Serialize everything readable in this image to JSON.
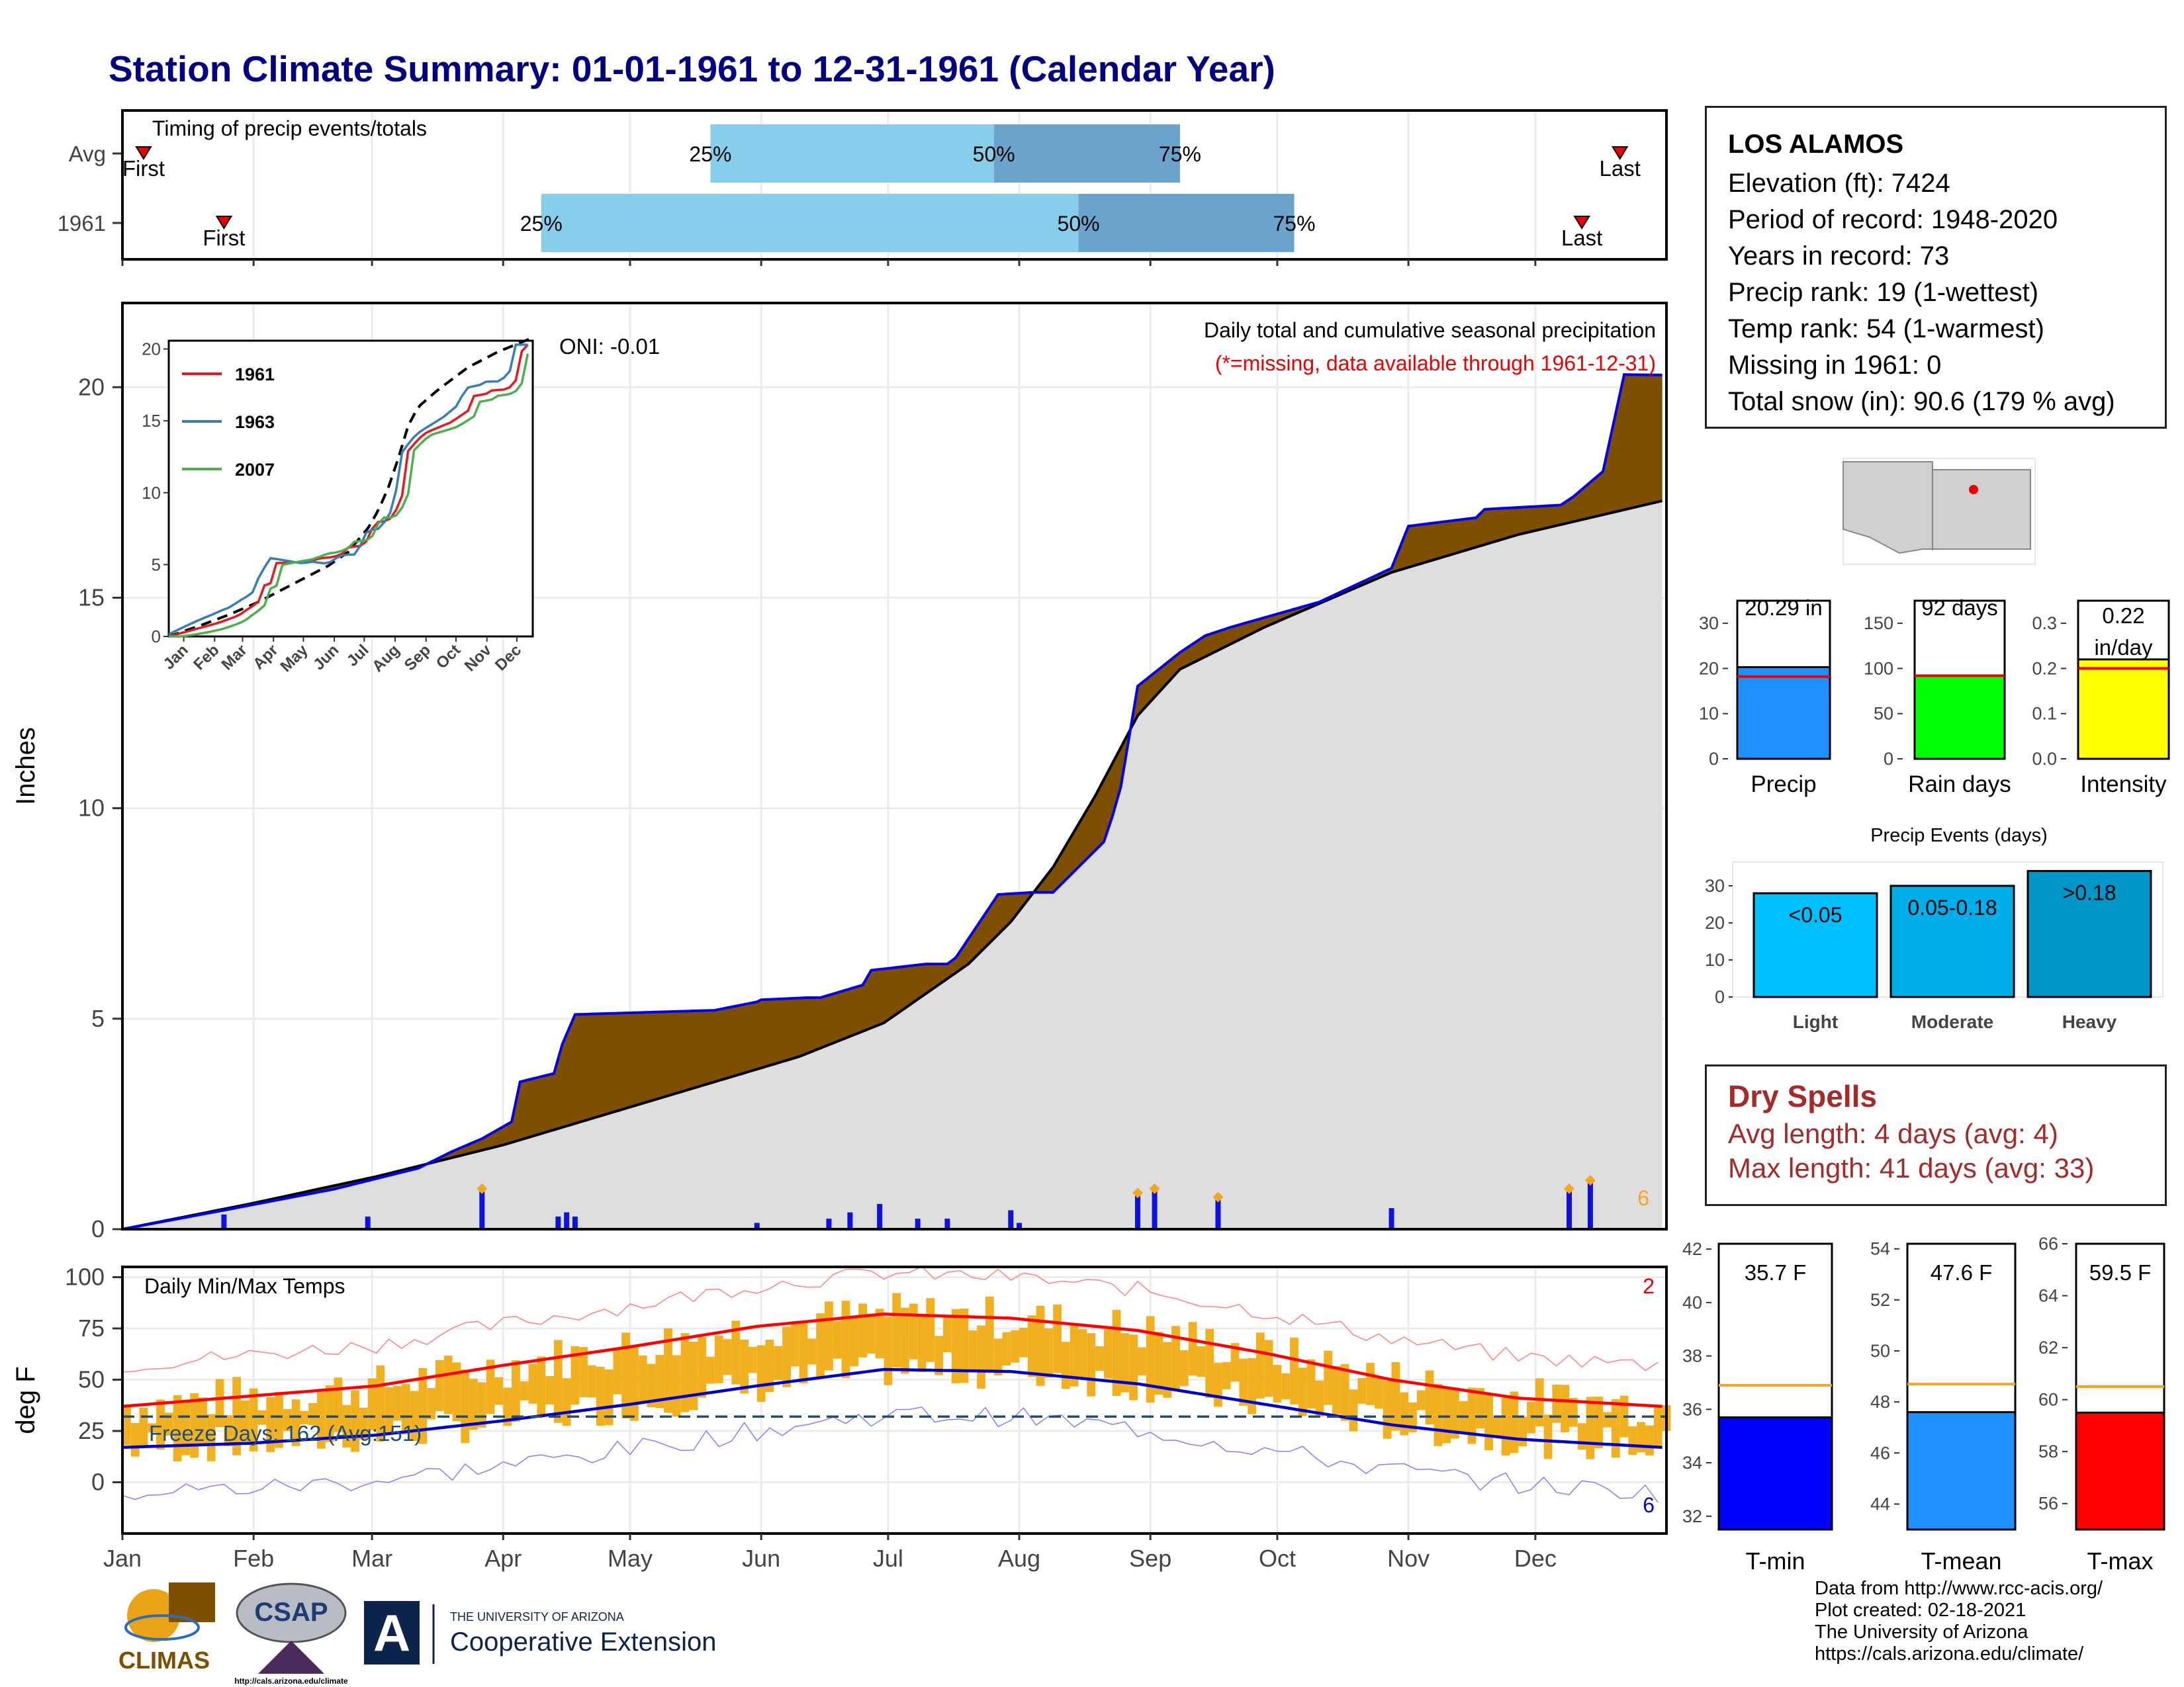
{
  "title": "Station Climate Summary: 01-01-1961 to 12-31-1961 (Calendar Year)",
  "colors": {
    "title": "#000080",
    "brown": "#7f4f00",
    "green": "#008000",
    "blue_line": "#0000ee",
    "gray_fill": "#dedede",
    "light_blue": "#87ceeb",
    "mid_blue": "#6aa4cc",
    "orange": "#f0b020",
    "red": "#ff0000",
    "dry": "#a52a2a"
  },
  "timing": {
    "heading": "Timing of precip events/totals",
    "rows": [
      {
        "label": "Avg",
        "first": "First",
        "last": "Last",
        "p25": "25%",
        "p50": "50%",
        "p75": "75%",
        "first_day": 5,
        "p25_day": 139,
        "p50_day": 206,
        "p75_day": 250,
        "last_day": 354
      },
      {
        "label": "1961",
        "first": "First",
        "last": "Last",
        "p25": "25%",
        "p50": "50%",
        "p75": "75%",
        "first_day": 24,
        "p25_day": 99,
        "p50_day": 226,
        "p75_day": 277,
        "last_day": 345
      }
    ]
  },
  "precip_panel": {
    "ylabel": "Inches",
    "yticks": [
      "0",
      "5",
      "10",
      "15",
      "20"
    ],
    "caption": "Daily total and cumulative seasonal precipitation",
    "missing_note": "(*=missing, data available through 1961-12-31)",
    "oni": "ONI: -0.01",
    "corner_count": "6"
  },
  "inset": {
    "yticks": [
      "0",
      "5",
      "10",
      "15",
      "20"
    ],
    "months": [
      "Jan",
      "Feb",
      "Mar",
      "Apr",
      "May",
      "Jun",
      "Jul",
      "Aug",
      "Sep",
      "Oct",
      "Nov",
      "Dec"
    ],
    "legend": [
      {
        "name": "1961",
        "color": "#e41a1c"
      },
      {
        "name": "1963",
        "color": "#377eb8"
      },
      {
        "name": "2007",
        "color": "#4daf4a"
      }
    ]
  },
  "temp_panel": {
    "ylabel": "deg F",
    "heading": "Daily Min/Max Temps",
    "freeze_text": "Freeze Days: 162 (Avg:151)",
    "yticks": [
      "0",
      "25",
      "50",
      "75",
      "100"
    ],
    "count_top": "2",
    "count_bottom": "6"
  },
  "months": [
    "Jan",
    "Feb",
    "Mar",
    "Apr",
    "May",
    "Jun",
    "Jul",
    "Aug",
    "Sep",
    "Oct",
    "Nov",
    "Dec"
  ],
  "station": {
    "name": "LOS ALAMOS",
    "elevation": "Elevation (ft): 7424",
    "period": "Period of record: 1948-2020",
    "years": "Years in record: 73",
    "precip_rank": "Precip rank: 19 (1-wettest)",
    "temp_rank": "Temp rank: 54 (1-warmest)",
    "missing": "Missing in 1961: 0",
    "snow": "Total snow (in): 90.6 (179 % avg)"
  },
  "summary_bars": [
    {
      "label": "Precip",
      "value_text": "20.29 in",
      "value": 20.29,
      "avg": 18.2,
      "max": 35,
      "ticks": [
        "0",
        "10",
        "20",
        "30"
      ],
      "tickvals": [
        0,
        10,
        20,
        30
      ],
      "color": "#1e90ff"
    },
    {
      "label": "Rain days",
      "value_text": "92 days",
      "value": 92,
      "avg": 92,
      "max": 175,
      "ticks": [
        "0",
        "50",
        "100",
        "150"
      ],
      "tickvals": [
        0,
        50,
        100,
        150
      ],
      "color": "#00ff00"
    },
    {
      "label": "Intensity",
      "value_text": "0.22 in/day",
      "value_line1": "0.22",
      "value_line2": "in/day",
      "value": 0.22,
      "avg": 0.2,
      "max": 0.35,
      "ticks": [
        "0.0",
        "0.1",
        "0.2",
        "0.3"
      ],
      "tickvals": [
        0,
        0.1,
        0.2,
        0.3
      ],
      "color": "#ffff00"
    }
  ],
  "events": {
    "title": "Precip Events (days)",
    "yticks": [
      "0",
      "10",
      "20",
      "30"
    ],
    "bars": [
      {
        "category": "Light",
        "label": "<0.05",
        "value": 28,
        "color": "#00bfff"
      },
      {
        "category": "Moderate",
        "label": "0.05-0.18",
        "value": 30,
        "color": "#00aeea"
      },
      {
        "category": "Heavy",
        "label": ">0.18",
        "value": 34,
        "color": "#0096c8"
      }
    ]
  },
  "dry_spells": {
    "title": "Dry Spells",
    "avg": "Avg length: 4 days (avg: 4)",
    "max": "Max length: 41 days (avg: 33)"
  },
  "temp_bars": [
    {
      "label": "T-min",
      "value_text": "35.7 F",
      "value": 35.7,
      "avg": 36.9,
      "min": 31.5,
      "max": 42.2,
      "ticks": [
        "32",
        "34",
        "36",
        "38",
        "40",
        "42"
      ],
      "tickvals": [
        32,
        34,
        36,
        38,
        40,
        42
      ],
      "color": "#0000ff"
    },
    {
      "label": "T-mean",
      "value_text": "47.6 F",
      "value": 47.6,
      "avg": 48.7,
      "min": 43.0,
      "max": 54.2,
      "ticks": [
        "44",
        "46",
        "48",
        "50",
        "52",
        "54"
      ],
      "tickvals": [
        44,
        46,
        48,
        50,
        52,
        54
      ],
      "color": "#1e90ff"
    },
    {
      "label": "T-max",
      "value_text": "59.5 F",
      "value": 59.5,
      "avg": 60.5,
      "min": 55.0,
      "max": 66.0,
      "ticks": [
        "56",
        "58",
        "60",
        "62",
        "64",
        "66"
      ],
      "tickvals": [
        56,
        58,
        60,
        62,
        64,
        66
      ],
      "color": "#ff0000"
    }
  ],
  "logos": {
    "climas": "CLIMAS",
    "csap": "CSAP",
    "csap_url": "http://cals.arizona.edu/climate",
    "ua_line1": "THE UNIVERSITY OF ARIZONA",
    "ua_line2": "Cooperative Extension"
  },
  "credits": [
    "Data from http://www.rcc-acis.org/",
    "Plot created: 02-18-2021",
    "The University of Arizona",
    "https://cals.arizona.edu/climate/"
  ],
  "chart_data": [
    {
      "type": "area",
      "title": "Daily total and cumulative seasonal precipitation",
      "ylabel": "Inches",
      "ylim": [
        0,
        22
      ],
      "x_unit": "day of year",
      "series": [
        {
          "name": "1961 cumulative",
          "x": [
            0,
            24,
            50,
            70,
            78,
            85,
            92,
            94,
            102,
            104,
            107,
            140,
            150,
            151,
            162,
            165,
            175,
            177,
            190,
            195,
            197,
            207,
            215,
            220,
            232,
            234,
            236,
            240,
            250,
            256,
            262,
            283,
            300,
            304,
            320,
            322,
            340,
            343,
            350,
            355,
            364
          ],
          "y": [
            0.0,
            0.45,
            0.95,
            1.45,
            1.85,
            2.15,
            2.55,
            3.5,
            3.7,
            4.4,
            5.1,
            5.2,
            5.4,
            5.45,
            5.5,
            5.5,
            5.8,
            6.15,
            6.3,
            6.3,
            6.45,
            7.95,
            8.0,
            8.0,
            9.2,
            9.8,
            10.5,
            12.9,
            13.7,
            14.1,
            14.3,
            14.9,
            15.7,
            16.7,
            16.9,
            17.1,
            17.2,
            17.4,
            18.0,
            20.3,
            20.29
          ]
        },
        {
          "name": "Average cumulative",
          "x": [
            0,
            30,
            60,
            90,
            120,
            150,
            160,
            180,
            200,
            210,
            220,
            230,
            240,
            250,
            270,
            300,
            330,
            364
          ],
          "y": [
            0.0,
            0.6,
            1.25,
            2.0,
            2.9,
            3.8,
            4.1,
            4.9,
            6.3,
            7.3,
            8.6,
            10.3,
            12.2,
            13.3,
            14.3,
            15.6,
            16.5,
            17.3
          ]
        }
      ],
      "daily_bars": {
        "x": [
          24,
          58,
          85,
          103,
          105,
          107,
          150,
          167,
          172,
          179,
          188,
          195,
          210,
          212,
          240,
          244,
          259,
          300,
          342,
          347
        ],
        "y": [
          0.35,
          0.3,
          0.9,
          0.3,
          0.4,
          0.3,
          0.15,
          0.25,
          0.4,
          0.6,
          0.25,
          0.25,
          0.45,
          0.15,
          0.8,
          0.9,
          0.7,
          0.5,
          0.9,
          1.1
        ]
      }
    },
    {
      "type": "line",
      "title": "Daily Min/Max Temps",
      "ylabel": "deg F",
      "ylim": [
        -25,
        105
      ],
      "x_unit": "day of year",
      "series": [
        {
          "name": "Avg max",
          "x": [
            0,
            30,
            60,
            90,
            120,
            150,
            180,
            210,
            240,
            270,
            300,
            330,
            364
          ],
          "y": [
            37,
            42,
            47,
            57,
            66,
            76,
            82,
            80,
            74,
            63,
            50,
            41,
            37
          ]
        },
        {
          "name": "Avg min",
          "x": [
            0,
            30,
            60,
            90,
            120,
            150,
            180,
            210,
            240,
            270,
            300,
            330,
            364
          ],
          "y": [
            17,
            19,
            23,
            30,
            38,
            47,
            55,
            54,
            48,
            38,
            28,
            21,
            17
          ]
        }
      ],
      "freeze_line": 32
    }
  ]
}
